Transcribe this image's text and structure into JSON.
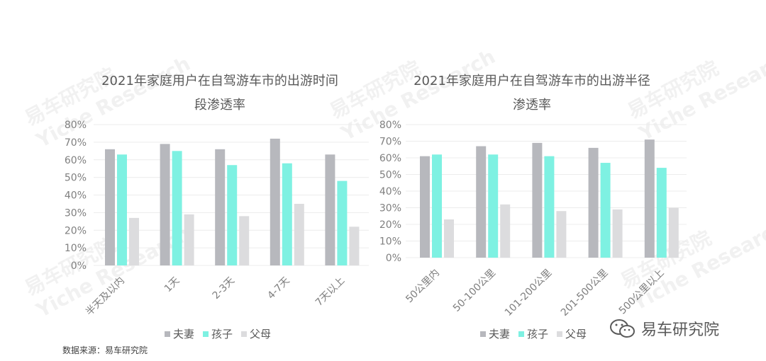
{
  "colors": {
    "夫妻": "#b7b8bd",
    "孩子": "#7ef1e2",
    "父母": "#dcdcde",
    "grid": "#ececec"
  },
  "source_text": "数据来源：易车研究院",
  "brand_text": "易车研究院",
  "watermarks": [
    {
      "cn": "易车研究院",
      "en": "Yiche Research"
    }
  ],
  "chart_data": [
    {
      "type": "bar",
      "title": "2021年家庭用户在自驾游车市的出游时间段渗透率",
      "title_lines": [
        "2021年家庭用户在自驾游车市的出游时间",
        "段渗透率"
      ],
      "categories": [
        "半天及以内",
        "1天",
        "2-3天",
        "4-7天",
        "7天以上"
      ],
      "series": [
        {
          "name": "夫妻",
          "values": [
            66,
            69,
            66,
            72,
            63
          ]
        },
        {
          "name": "孩子",
          "values": [
            63,
            65,
            57,
            58,
            48
          ]
        },
        {
          "name": "父母",
          "values": [
            27,
            29,
            28,
            35,
            22
          ]
        }
      ],
      "ylim": [
        0,
        80
      ],
      "yticks": [
        "0%",
        "10%",
        "20%",
        "30%",
        "40%",
        "50%",
        "60%",
        "70%",
        "80%"
      ],
      "grid": true,
      "legend": "bottom"
    },
    {
      "type": "bar",
      "title": "2021年家庭用户在自驾游车市的出游半径渗透率",
      "title_lines": [
        "2021年家庭用户在自驾游车市的出游半径",
        "渗透率"
      ],
      "categories": [
        "50公里内",
        "50-100公里",
        "101-200公里",
        "201-500公里",
        "500公里以上"
      ],
      "series": [
        {
          "name": "夫妻",
          "values": [
            61,
            67,
            69,
            66,
            71
          ]
        },
        {
          "name": "孩子",
          "values": [
            62,
            62,
            61,
            57,
            54
          ]
        },
        {
          "name": "父母",
          "values": [
            23,
            32,
            28,
            29,
            30
          ]
        }
      ],
      "ylim": [
        0,
        80
      ],
      "yticks": [
        "0%",
        "10%",
        "20%",
        "30%",
        "40%",
        "50%",
        "60%",
        "70%",
        "80%"
      ],
      "grid": true,
      "legend": "bottom"
    }
  ]
}
